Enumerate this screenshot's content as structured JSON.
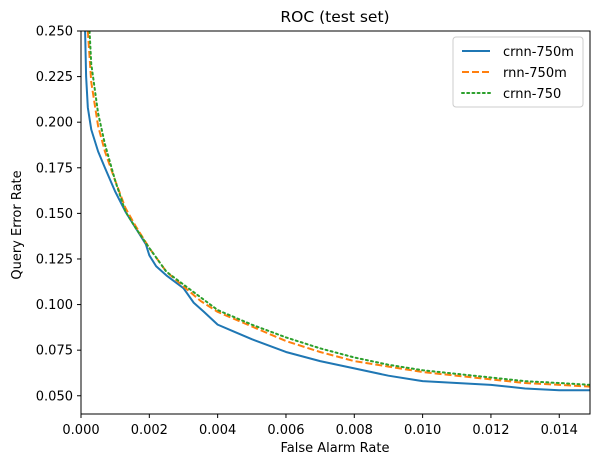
{
  "chart_data": {
    "type": "line",
    "title": "ROC (test set)",
    "xlabel": "False Alarm Rate",
    "ylabel": "Query Error Rate",
    "xlim": [
      0.0,
      0.0149
    ],
    "ylim": [
      0.04,
      0.25
    ],
    "xticks": [
      0.0,
      0.002,
      0.004,
      0.006,
      0.008,
      0.01,
      0.012,
      0.014
    ],
    "xtick_labels": [
      "0.000",
      "0.002",
      "0.004",
      "0.006",
      "0.008",
      "0.010",
      "0.012",
      "0.014"
    ],
    "yticks": [
      0.05,
      0.075,
      0.1,
      0.125,
      0.15,
      0.175,
      0.2,
      0.225,
      0.25
    ],
    "ytick_labels": [
      "0.050",
      "0.075",
      "0.100",
      "0.125",
      "0.150",
      "0.175",
      "0.200",
      "0.225",
      "0.250"
    ],
    "grid": false,
    "legend_position": "top-right",
    "series": [
      {
        "name": "crnn-750m",
        "color": "#1f77b4",
        "style": "solid",
        "x": [
          0.00012,
          0.00015,
          0.0002,
          0.0003,
          0.0005,
          0.0007,
          0.001,
          0.0013,
          0.0016,
          0.0019,
          0.002,
          0.0022,
          0.0025,
          0.003,
          0.0033,
          0.0036,
          0.004,
          0.0045,
          0.005,
          0.006,
          0.007,
          0.008,
          0.009,
          0.01,
          0.011,
          0.012,
          0.013,
          0.014,
          0.0149
        ],
        "y": [
          0.25,
          0.225,
          0.208,
          0.196,
          0.184,
          0.175,
          0.162,
          0.151,
          0.142,
          0.133,
          0.127,
          0.121,
          0.116,
          0.109,
          0.101,
          0.096,
          0.089,
          0.085,
          0.081,
          0.074,
          0.069,
          0.065,
          0.061,
          0.058,
          0.057,
          0.056,
          0.054,
          0.053,
          0.053
        ]
      },
      {
        "name": "rnn-750m",
        "color": "#ff7f0e",
        "style": "dashed",
        "x": [
          0.0002,
          0.0003,
          0.0005,
          0.0007,
          0.001,
          0.0013,
          0.0016,
          0.002,
          0.0025,
          0.003,
          0.0035,
          0.004,
          0.005,
          0.006,
          0.007,
          0.008,
          0.009,
          0.01,
          0.011,
          0.012,
          0.013,
          0.014,
          0.0149
        ],
        "y": [
          0.25,
          0.222,
          0.198,
          0.184,
          0.168,
          0.153,
          0.143,
          0.131,
          0.118,
          0.11,
          0.102,
          0.096,
          0.088,
          0.08,
          0.074,
          0.069,
          0.066,
          0.063,
          0.061,
          0.059,
          0.057,
          0.056,
          0.055
        ]
      },
      {
        "name": "crnn-750",
        "color": "#2ca02c",
        "style": "dotted",
        "x": [
          0.00025,
          0.0003,
          0.0005,
          0.0007,
          0.001,
          0.0013,
          0.0016,
          0.002,
          0.0025,
          0.003,
          0.0035,
          0.004,
          0.005,
          0.006,
          0.007,
          0.008,
          0.009,
          0.01,
          0.011,
          0.012,
          0.013,
          0.014,
          0.0149
        ],
        "y": [
          0.25,
          0.232,
          0.205,
          0.188,
          0.168,
          0.151,
          0.142,
          0.131,
          0.118,
          0.111,
          0.104,
          0.097,
          0.089,
          0.082,
          0.076,
          0.071,
          0.067,
          0.064,
          0.062,
          0.06,
          0.058,
          0.057,
          0.056
        ]
      }
    ]
  }
}
